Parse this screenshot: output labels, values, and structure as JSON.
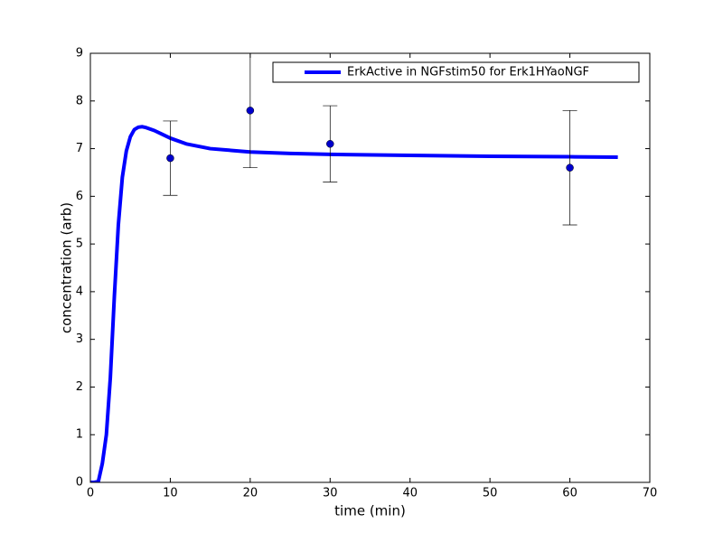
{
  "chart_data": {
    "type": "line",
    "xlabel": "time (min)",
    "ylabel": "concentration (arb)",
    "xlim": [
      0,
      70
    ],
    "ylim": [
      0,
      9
    ],
    "xticks": [
      0,
      10,
      20,
      30,
      40,
      50,
      60,
      70
    ],
    "yticks": [
      0,
      1,
      2,
      3,
      4,
      5,
      6,
      7,
      8,
      9
    ],
    "legend": "upper right",
    "series": [
      {
        "name": "ErkActive in NGFstim50 for Erk1HYaoNGF",
        "color": "#0000ff",
        "x": [
          0,
          0.5,
          1,
          1.5,
          2,
          2.5,
          3,
          3.5,
          4,
          4.5,
          5,
          5.5,
          6,
          6.5,
          7,
          8,
          9,
          10,
          12,
          15,
          20,
          25,
          30,
          40,
          50,
          60,
          66
        ],
        "values": [
          0,
          0,
          0.02,
          0.4,
          1.0,
          2.2,
          3.9,
          5.4,
          6.4,
          6.95,
          7.25,
          7.4,
          7.45,
          7.46,
          7.44,
          7.38,
          7.3,
          7.22,
          7.1,
          7.0,
          6.93,
          6.9,
          6.88,
          6.86,
          6.84,
          6.83,
          6.82
        ]
      }
    ],
    "error_points": {
      "color": "#0000cc",
      "x": [
        10,
        20,
        30,
        60
      ],
      "values": [
        6.8,
        7.8,
        7.1,
        6.6
      ],
      "errors": [
        0.78,
        1.2,
        0.8,
        1.2
      ]
    }
  }
}
